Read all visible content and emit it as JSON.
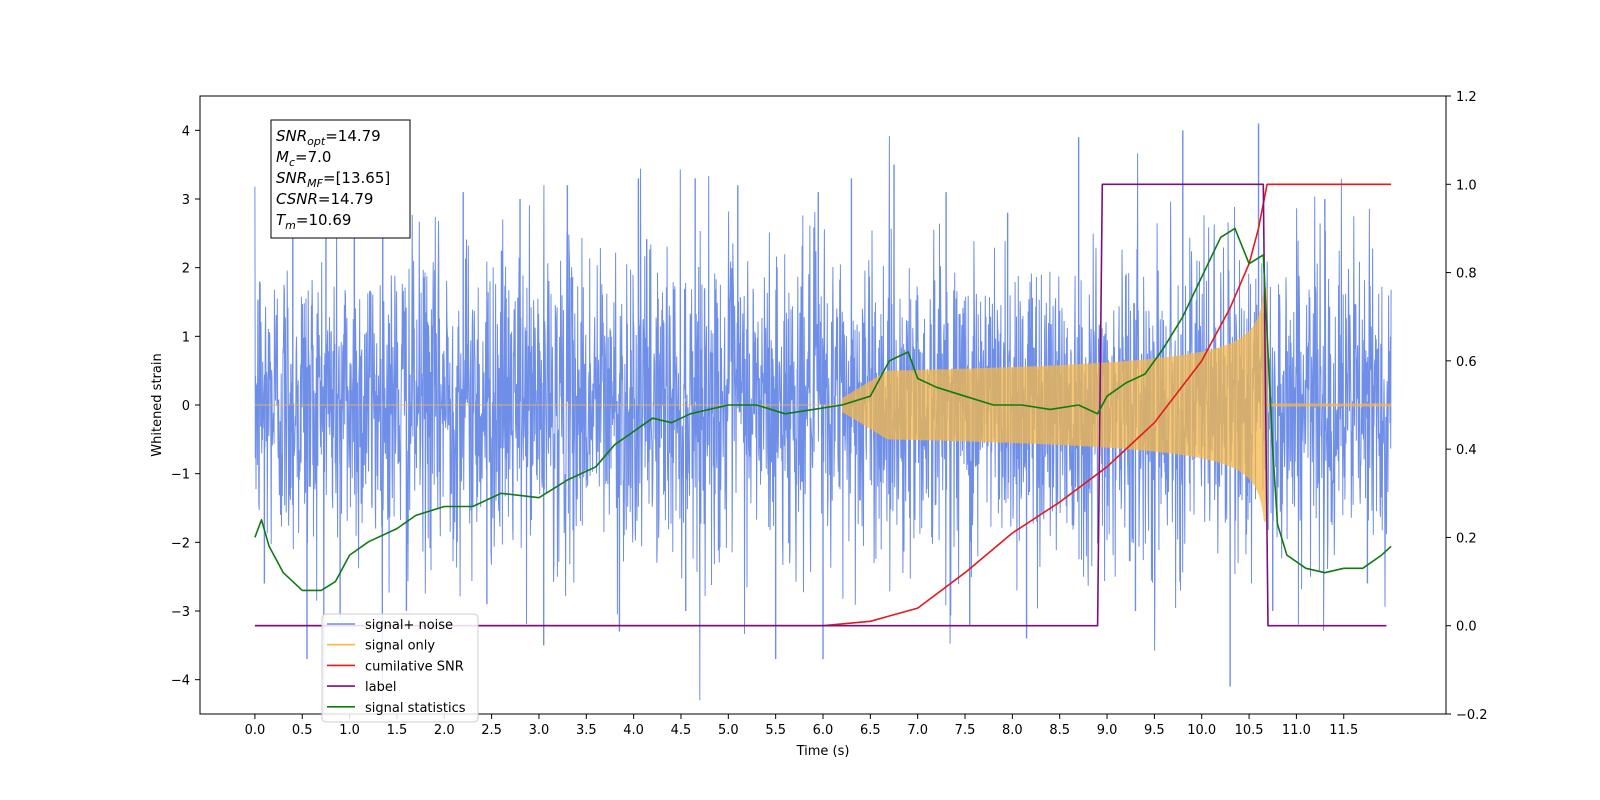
{
  "chart_data": {
    "type": "line",
    "title": "",
    "xlabel": "Time (s)",
    "ylabel": "Whitened strain",
    "xlim": [
      -0.58,
      12.58
    ],
    "ylim": [
      -4.5,
      4.5
    ],
    "y2lim": [
      -0.2,
      1.2
    ],
    "x_ticks": [
      0.0,
      0.5,
      1.0,
      1.5,
      2.0,
      2.5,
      3.0,
      3.5,
      4.0,
      4.5,
      5.0,
      5.5,
      6.0,
      6.5,
      7.0,
      7.5,
      8.0,
      8.5,
      9.0,
      9.5,
      10.0,
      10.5,
      11.0,
      11.5
    ],
    "x_tick_labels": [
      "0.0",
      "0.5",
      "1.0",
      "1.5",
      "2.0",
      "2.5",
      "3.0",
      "3.5",
      "4.0",
      "4.5",
      "5.0",
      "5.5",
      "6.0",
      "6.5",
      "7.0",
      "7.5",
      "8.0",
      "8.5",
      "9.0",
      "9.5",
      "10.0",
      "10.5",
      "11.0",
      "11.5"
    ],
    "y_ticks": [
      -4,
      -3,
      -2,
      -1,
      0,
      1,
      2,
      3,
      4
    ],
    "y_tick_labels": [
      "−4",
      "−3",
      "−2",
      "−1",
      "0",
      "1",
      "2",
      "3",
      "4"
    ],
    "y2_ticks": [
      -0.2,
      0.0,
      0.2,
      0.4,
      0.6,
      0.8,
      1.0,
      1.2
    ],
    "y2_tick_labels": [
      "−0.2",
      "0.0",
      "0.2",
      "0.4",
      "0.6",
      "0.8",
      "1.0",
      "1.2"
    ],
    "grid": false,
    "legend_placement": "lower-left",
    "annotation": {
      "lines": [
        {
          "label": "SNR",
          "sub": "opt",
          "value": "=14.79"
        },
        {
          "label": "M",
          "sub": "c",
          "value": "=7.0"
        },
        {
          "label": "SNR",
          "sub": "MF",
          "value": "=[13.65]"
        },
        {
          "label": "CSNR",
          "sub": "",
          "value": "=14.79"
        },
        {
          "label": "T",
          "sub": "m",
          "value": "=10.69"
        }
      ]
    },
    "series": [
      {
        "name": "signal+ noise",
        "color": "#6f8ee8",
        "axis": "left",
        "style": "noise band",
        "x_range": [
          0.0,
          12.0
        ],
        "typical_min": -2.0,
        "typical_max": 2.1,
        "spikes": [
          {
            "x": 0.05,
            "y": 1.8
          },
          {
            "x": 0.1,
            "y": -2.6
          },
          {
            "x": 0.4,
            "y": 2.9
          },
          {
            "x": 0.55,
            "y": -3.7
          },
          {
            "x": 0.75,
            "y": 3.2
          },
          {
            "x": 0.9,
            "y": -3.1
          },
          {
            "x": 1.05,
            "y": 3.0
          },
          {
            "x": 1.35,
            "y": 3.4
          },
          {
            "x": 1.6,
            "y": -3.0
          },
          {
            "x": 2.2,
            "y": 3.1
          },
          {
            "x": 2.45,
            "y": -2.9
          },
          {
            "x": 2.8,
            "y": 3.0
          },
          {
            "x": 3.05,
            "y": -3.5
          },
          {
            "x": 3.3,
            "y": 3.2
          },
          {
            "x": 3.85,
            "y": -3.3
          },
          {
            "x": 4.05,
            "y": 3.3
          },
          {
            "x": 4.55,
            "y": -3.0
          },
          {
            "x": 4.65,
            "y": 3.3
          },
          {
            "x": 5.1,
            "y": 3.2
          },
          {
            "x": 5.5,
            "y": -3.7
          },
          {
            "x": 5.95,
            "y": 3.1
          },
          {
            "x": 6.0,
            "y": -3.7
          },
          {
            "x": 6.3,
            "y": 3.3
          },
          {
            "x": 6.75,
            "y": 3.5
          },
          {
            "x": 7.3,
            "y": 3.1
          },
          {
            "x": 7.55,
            "y": -3.2
          },
          {
            "x": 7.95,
            "y": 2.8
          },
          {
            "x": 8.15,
            "y": -3.4
          },
          {
            "x": 8.7,
            "y": 3.9
          },
          {
            "x": 9.3,
            "y": -3.0
          },
          {
            "x": 9.8,
            "y": 4.0
          },
          {
            "x": 10.3,
            "y": -4.1
          },
          {
            "x": 10.6,
            "y": 4.1
          },
          {
            "x": 10.75,
            "y": -3.0
          },
          {
            "x": 11.3,
            "y": 3.0
          },
          {
            "x": 11.75,
            "y": -2.6
          }
        ]
      },
      {
        "name": "signal only",
        "color": "#f5b849",
        "axis": "left",
        "style": "chirp",
        "x_range": [
          0.0,
          12.0
        ],
        "chirp_start": 6.2,
        "chirp_peak_time": 10.69,
        "chirp_peak_amplitude": 1.7,
        "post_merger_amplitude": 0.02
      },
      {
        "name": "cumilative SNR",
        "color": "#e31a1c",
        "axis": "right",
        "x": [
          0.0,
          6.0,
          6.5,
          7.0,
          7.5,
          8.0,
          8.5,
          9.0,
          9.5,
          10.0,
          10.3,
          10.5,
          10.6,
          10.69,
          12.0
        ],
        "y": [
          0.0,
          0.0,
          0.01,
          0.04,
          0.12,
          0.21,
          0.28,
          0.36,
          0.46,
          0.6,
          0.72,
          0.82,
          0.9,
          1.0,
          1.0
        ]
      },
      {
        "name": "label",
        "color": "#7b0f7b",
        "axis": "right",
        "x": [
          0.0,
          8.9,
          8.95,
          10.65,
          10.7,
          11.95
        ],
        "y": [
          0.0,
          0.0,
          1.0,
          1.0,
          0.0,
          0.0
        ]
      },
      {
        "name": "signal statistics",
        "color": "#117a11",
        "axis": "right",
        "x": [
          0.0,
          0.07,
          0.15,
          0.3,
          0.5,
          0.7,
          0.85,
          1.0,
          1.2,
          1.5,
          1.7,
          2.0,
          2.3,
          2.6,
          3.0,
          3.3,
          3.6,
          3.8,
          4.0,
          4.2,
          4.4,
          4.6,
          4.8,
          5.0,
          5.3,
          5.6,
          5.9,
          6.2,
          6.5,
          6.7,
          6.8,
          6.9,
          7.0,
          7.2,
          7.5,
          7.8,
          8.1,
          8.4,
          8.7,
          8.9,
          9.0,
          9.2,
          9.4,
          9.6,
          9.8,
          10.0,
          10.2,
          10.35,
          10.5,
          10.65,
          10.75,
          10.8,
          10.9,
          11.1,
          11.3,
          11.5,
          11.7,
          11.9,
          12.0
        ],
        "y": [
          0.2,
          0.24,
          0.18,
          0.12,
          0.08,
          0.08,
          0.1,
          0.16,
          0.19,
          0.22,
          0.25,
          0.27,
          0.27,
          0.3,
          0.29,
          0.33,
          0.36,
          0.41,
          0.44,
          0.47,
          0.46,
          0.48,
          0.49,
          0.5,
          0.5,
          0.48,
          0.49,
          0.5,
          0.52,
          0.6,
          0.61,
          0.62,
          0.56,
          0.54,
          0.52,
          0.5,
          0.5,
          0.49,
          0.5,
          0.48,
          0.52,
          0.55,
          0.57,
          0.63,
          0.7,
          0.79,
          0.88,
          0.9,
          0.82,
          0.84,
          0.4,
          0.23,
          0.16,
          0.13,
          0.12,
          0.13,
          0.13,
          0.16,
          0.18
        ]
      }
    ],
    "legend": [
      {
        "label": "signal+ noise",
        "color": "#6f8ee8"
      },
      {
        "label": "signal only",
        "color": "#f5b849"
      },
      {
        "label": "cumilative SNR",
        "color": "#e31a1c"
      },
      {
        "label": "label",
        "color": "#7b0f7b"
      },
      {
        "label": "signal statistics",
        "color": "#117a11"
      }
    ]
  }
}
